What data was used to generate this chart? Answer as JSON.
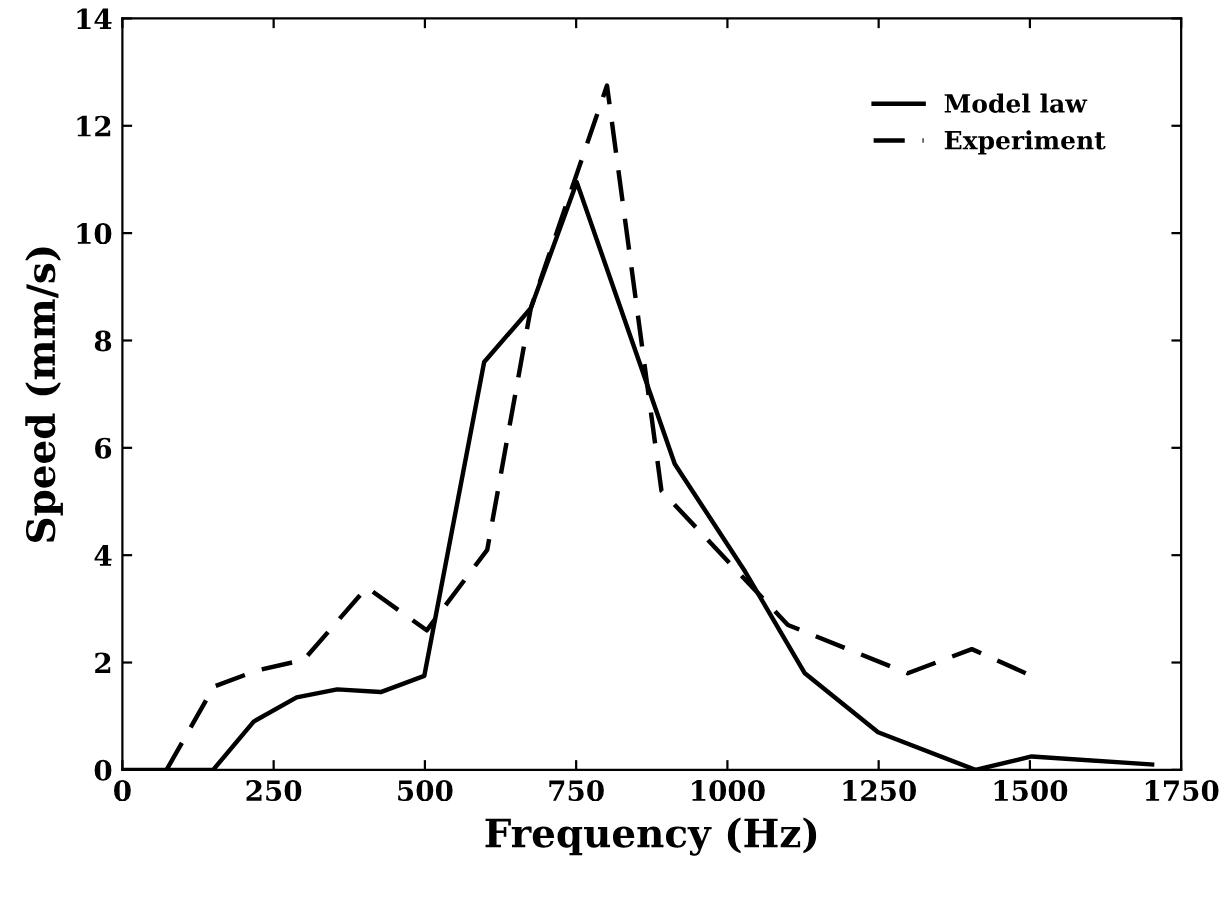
{
  "chart_data": {
    "type": "line",
    "xlabel": "Frequency (Hz)",
    "ylabel": "Speed (mm/s)",
    "xlim": [
      0,
      1750
    ],
    "xticks": [
      0,
      250,
      500,
      750,
      1000,
      1250,
      1500,
      1750
    ],
    "ylim": [
      0,
      14
    ],
    "yticks": [
      0,
      2,
      4,
      6,
      8,
      10,
      12,
      14
    ],
    "grid": false,
    "legend": "top right",
    "marker": "none",
    "series": [
      {
        "name": "Model law",
        "color": "#000000",
        "line_style": "solid",
        "x": [
          0,
          150,
          217,
          288,
          355,
          427,
          499,
          598,
          675,
          751,
          913,
          1029,
          1128,
          1249,
          1410,
          1503,
          1702
        ],
        "values": [
          0,
          0,
          0.9,
          1.35,
          1.5,
          1.45,
          1.75,
          7.6,
          8.6,
          10.95,
          5.7,
          3.7,
          1.8,
          0.7,
          0,
          0.25,
          0.1
        ]
      },
      {
        "name": "Experiment",
        "color": "#000000",
        "line_style": "dashed",
        "x": [
          73,
          151,
          222,
          300,
          404,
          503,
          603,
          675,
          801,
          891,
          1100,
          1298,
          1404,
          1503
        ],
        "values": [
          0,
          1.55,
          1.85,
          2.05,
          3.4,
          2.6,
          4.1,
          8.6,
          12.75,
          5.2,
          2.7,
          1.8,
          2.25,
          1.75
        ]
      }
    ]
  }
}
